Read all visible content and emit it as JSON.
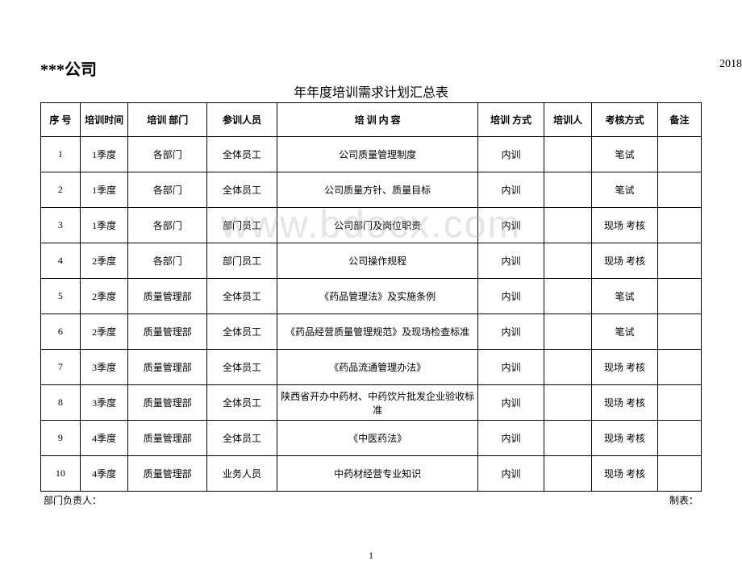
{
  "watermark": "www.bdocx.com",
  "company": "***公司",
  "year_fragment": "2018",
  "title": "年年度培训需求计划汇总表",
  "columns": {
    "idx": "序  号",
    "time": "培训时间",
    "dept": "培训    部门",
    "participants": "参训人员",
    "content": "培  训  内  容",
    "method": "培训  方式",
    "trainer": "培训人",
    "assessment": "考核方式",
    "remark": "备注"
  },
  "rows": [
    {
      "idx": "1",
      "time": "1季度",
      "dept": "各部门",
      "part": "全体员工",
      "content": "公司质量管理制度",
      "method": "内训",
      "trainer": "",
      "assess": "笔试",
      "remark": ""
    },
    {
      "idx": "2",
      "time": "1季度",
      "dept": "各部门",
      "part": "全体员工",
      "content": "公司质量方针、质量目标",
      "method": "内训",
      "trainer": "",
      "assess": "笔试",
      "remark": ""
    },
    {
      "idx": "3",
      "time": "1季度",
      "dept": "各部门",
      "part": "部门员工",
      "content": "公司部门及岗位职责",
      "method": "内训",
      "trainer": "",
      "assess": "现场  考核",
      "remark": ""
    },
    {
      "idx": "4",
      "time": "2季度",
      "dept": "各部门",
      "part": "部门员工",
      "content": "公司操作规程",
      "method": "内训",
      "trainer": "",
      "assess": "现场  考核",
      "remark": ""
    },
    {
      "idx": "5",
      "time": "2季度",
      "dept": "质量管理部",
      "part": "全体员工",
      "content": "《药品管理法》及实施条例",
      "method": "内训",
      "trainer": "",
      "assess": "笔试",
      "remark": ""
    },
    {
      "idx": "6",
      "time": "2季度",
      "dept": "质量管理部",
      "part": "全体员工",
      "content": "《药品经营质量管理规范》及现场检查标准",
      "method": "内训",
      "trainer": "",
      "assess": "笔试",
      "remark": ""
    },
    {
      "idx": "7",
      "time": "3季度",
      "dept": "质量管理部",
      "part": "全体员工",
      "content": "《药品流通管理办法》",
      "method": "内训",
      "trainer": "",
      "assess": "现场  考核",
      "remark": ""
    },
    {
      "idx": "8",
      "time": "3季度",
      "dept": "质量管理部",
      "part": "全体员工",
      "content": "陕西省开办中药材、中药饮片批发企业验收标准",
      "method": "内训",
      "trainer": "",
      "assess": "现场  考核",
      "remark": ""
    },
    {
      "idx": "9",
      "time": "4季度",
      "dept": "质量管理部",
      "part": "全体员工",
      "content": "《中医药法》",
      "method": "内训",
      "trainer": "",
      "assess": "现场  考核",
      "remark": ""
    },
    {
      "idx": "10",
      "time": "4季度",
      "dept": "质量管理部",
      "part": "业务人员",
      "content": "中药材经营专业知识",
      "method": "内训",
      "trainer": "",
      "assess": "现场  考核",
      "remark": ""
    }
  ],
  "footer": {
    "leader": "部门负责人：",
    "preparer": "制表："
  },
  "page_number": "1"
}
